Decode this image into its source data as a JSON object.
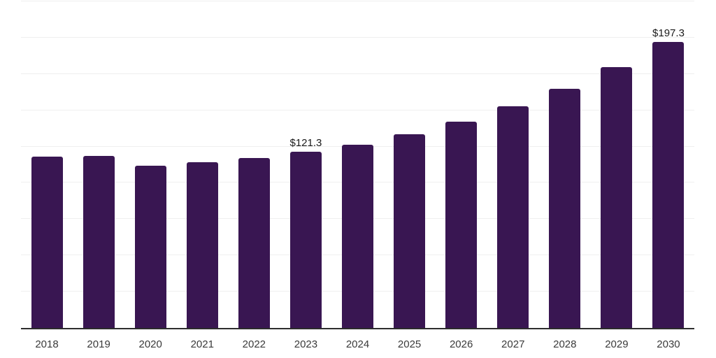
{
  "chart": {
    "background_color": "#ffffff",
    "bar_color": "#391652",
    "grid_color": "#efefef",
    "axis_line_color": "#2d2d2d",
    "value_label_color": "#1a1a1a",
    "tick_label_color": "#3a3a3a"
  },
  "chart_data": {
    "type": "bar",
    "title": "",
    "xlabel": "",
    "ylabel": "",
    "categories": [
      "2018",
      "2019",
      "2020",
      "2021",
      "2022",
      "2023",
      "2024",
      "2025",
      "2026",
      "2027",
      "2028",
      "2029",
      "2030"
    ],
    "values": [
      117.9,
      118.7,
      111.9,
      114.2,
      117.3,
      121.3,
      126.2,
      133.5,
      141.9,
      152.5,
      164.8,
      179.8,
      197.3
    ],
    "data_labels": [
      "",
      "",
      "",
      "",
      "",
      "$121.3",
      "",
      "",
      "",
      "",
      "",
      "",
      "$197.3"
    ],
    "ylim": [
      0,
      225
    ],
    "y_step": 25,
    "grid": "horizontal-only",
    "y_axis_tick_labels_visible": false,
    "legend": "none"
  }
}
